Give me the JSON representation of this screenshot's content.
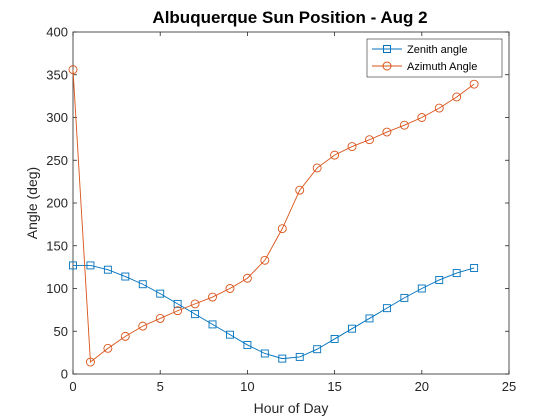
{
  "colors": {
    "zenith": "#0072BD",
    "azimuth": "#D95319",
    "axis": "#262626"
  },
  "chart_data": {
    "type": "line",
    "title": "Albuquerque Sun Position - Aug 2",
    "xlabel": "Hour of Day",
    "ylabel": "Angle (deg)",
    "xlim": [
      0,
      25
    ],
    "ylim": [
      0,
      400
    ],
    "xticks": [
      0,
      5,
      10,
      15,
      20,
      25
    ],
    "yticks": [
      0,
      50,
      100,
      150,
      200,
      250,
      300,
      350,
      400
    ],
    "grid": false,
    "legend_position": "top-right",
    "x": [
      0,
      1,
      2,
      3,
      4,
      5,
      6,
      7,
      8,
      9,
      10,
      11,
      12,
      13,
      14,
      15,
      16,
      17,
      18,
      19,
      20,
      21,
      22,
      23
    ],
    "series": [
      {
        "name": "Zenith angle",
        "marker": "square",
        "color": "#0072BD",
        "values": [
          127,
          127,
          122,
          114,
          105,
          94,
          82,
          70,
          58,
          46,
          34,
          24,
          18,
          20,
          29,
          41,
          53,
          65,
          77,
          89,
          100,
          110,
          118,
          124
        ]
      },
      {
        "name": "Azimuth Angle",
        "marker": "circle",
        "color": "#D95319",
        "values": [
          356,
          14,
          30,
          44,
          56,
          65,
          74,
          82,
          90,
          100,
          112,
          133,
          170,
          215,
          241,
          256,
          266,
          274,
          283,
          291,
          300,
          311,
          324,
          339
        ]
      }
    ]
  }
}
